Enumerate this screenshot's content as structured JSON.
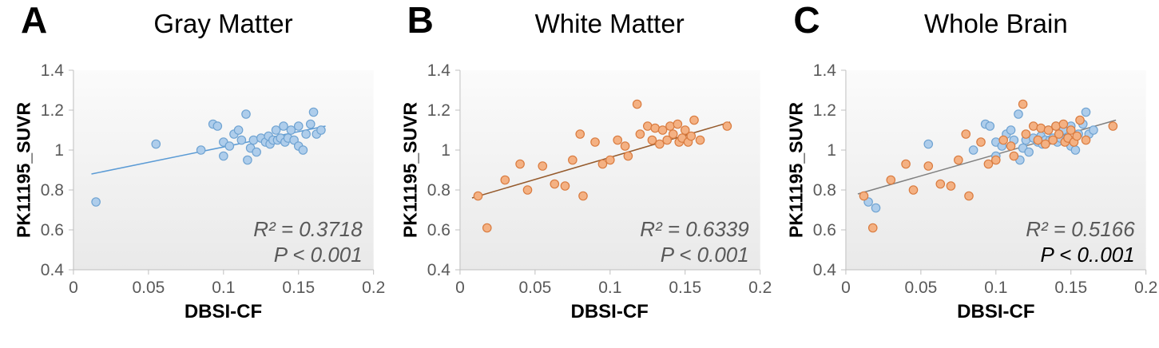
{
  "figure": {
    "background": "#FFFFFF"
  },
  "chart_data": [
    {
      "type": "scatter",
      "panel_label": "A",
      "title": "Gray Matter",
      "xlabel": "DBSI-CF",
      "ylabel": "PK11195_SUVR",
      "xlim": [
        0,
        0.2
      ],
      "ylim": [
        0.4,
        1.4
      ],
      "grid": false,
      "legend": "none",
      "xticks": {
        "values": [
          0,
          0.05,
          0.1,
          0.15,
          0.2
        ],
        "labels": [
          "0",
          "0.05",
          "0.1",
          "0.15",
          "0.2"
        ]
      },
      "yticks": {
        "values": [
          0.4,
          0.6,
          0.8,
          1,
          1.2,
          1.4
        ],
        "labels": [
          "0.4",
          "0.6",
          "0.8",
          "1",
          "1.2",
          "1.4"
        ]
      },
      "series": [
        {
          "name": "gray-matter",
          "fill": "#AECDEB",
          "stroke": "#6FA3D2",
          "points": [
            [
              0.015,
              0.74
            ],
            [
              0.055,
              1.03
            ],
            [
              0.085,
              1.0
            ],
            [
              0.093,
              1.13
            ],
            [
              0.096,
              1.12
            ],
            [
              0.1,
              1.04
            ],
            [
              0.1,
              0.97
            ],
            [
              0.104,
              1.02
            ],
            [
              0.107,
              1.08
            ],
            [
              0.11,
              1.1
            ],
            [
              0.112,
              1.05
            ],
            [
              0.115,
              1.18
            ],
            [
              0.116,
              0.95
            ],
            [
              0.118,
              1.01
            ],
            [
              0.12,
              1.05
            ],
            [
              0.122,
              0.99
            ],
            [
              0.125,
              1.06
            ],
            [
              0.128,
              1.04
            ],
            [
              0.13,
              1.07
            ],
            [
              0.131,
              1.03
            ],
            [
              0.133,
              1.05
            ],
            [
              0.135,
              1.1
            ],
            [
              0.136,
              1.05
            ],
            [
              0.138,
              1.06
            ],
            [
              0.14,
              1.12
            ],
            [
              0.141,
              1.04
            ],
            [
              0.143,
              1.06
            ],
            [
              0.145,
              1.1
            ],
            [
              0.147,
              1.05
            ],
            [
              0.15,
              1.12
            ],
            [
              0.15,
              1.02
            ],
            [
              0.153,
              1.0
            ],
            [
              0.155,
              1.08
            ],
            [
              0.158,
              1.13
            ],
            [
              0.16,
              1.19
            ],
            [
              0.162,
              1.08
            ],
            [
              0.165,
              1.1
            ]
          ]
        }
      ],
      "trendline": {
        "points": [
          [
            0.012,
            0.88
          ],
          [
            0.168,
            1.12
          ]
        ],
        "color": "#5B9BD5"
      },
      "annotations": [
        {
          "text": "R² = 0.3718",
          "color": "#595959",
          "italic": true
        },
        {
          "text": "P < 0.001",
          "color": "#595959",
          "italic": true
        }
      ]
    },
    {
      "type": "scatter",
      "panel_label": "B",
      "title": "White Matter",
      "xlabel": "DBSI-CF",
      "ylabel": "PK11195_SUVR",
      "xlim": [
        0,
        0.2
      ],
      "ylim": [
        0.4,
        1.4
      ],
      "grid": false,
      "legend": "none",
      "xticks": {
        "values": [
          0,
          0.05,
          0.1,
          0.15,
          0.2
        ],
        "labels": [
          "0",
          "0.05",
          "0.1",
          "0.15",
          "0.2"
        ]
      },
      "yticks": {
        "values": [
          0.4,
          0.6,
          0.8,
          1,
          1.2,
          1.4
        ],
        "labels": [
          "0.4",
          "0.6",
          "0.8",
          "1",
          "1.2",
          "1.4"
        ]
      },
      "series": [
        {
          "name": "white-matter",
          "fill": "#F4B183",
          "stroke": "#D97B3F",
          "points": [
            [
              0.012,
              0.77
            ],
            [
              0.018,
              0.61
            ],
            [
              0.03,
              0.85
            ],
            [
              0.04,
              0.93
            ],
            [
              0.045,
              0.8
            ],
            [
              0.055,
              0.92
            ],
            [
              0.063,
              0.83
            ],
            [
              0.07,
              0.82
            ],
            [
              0.075,
              0.95
            ],
            [
              0.08,
              1.08
            ],
            [
              0.082,
              0.77
            ],
            [
              0.09,
              1.04
            ],
            [
              0.095,
              0.93
            ],
            [
              0.1,
              0.95
            ],
            [
              0.105,
              1.05
            ],
            [
              0.11,
              1.02
            ],
            [
              0.112,
              0.97
            ],
            [
              0.118,
              1.23
            ],
            [
              0.12,
              1.08
            ],
            [
              0.125,
              1.12
            ],
            [
              0.128,
              1.05
            ],
            [
              0.13,
              1.11
            ],
            [
              0.133,
              1.03
            ],
            [
              0.135,
              1.1
            ],
            [
              0.138,
              1.05
            ],
            [
              0.14,
              1.12
            ],
            [
              0.142,
              1.08
            ],
            [
              0.145,
              1.13
            ],
            [
              0.146,
              1.04
            ],
            [
              0.148,
              1.06
            ],
            [
              0.15,
              1.1
            ],
            [
              0.152,
              1.04
            ],
            [
              0.154,
              1.07
            ],
            [
              0.156,
              1.15
            ],
            [
              0.16,
              1.05
            ],
            [
              0.178,
              1.12
            ]
          ]
        }
      ],
      "trendline": {
        "points": [
          [
            0.008,
            0.76
          ],
          [
            0.18,
            1.14
          ]
        ],
        "color": "#955A2C"
      },
      "annotations": [
        {
          "text": "R² = 0.6339",
          "color": "#595959",
          "italic": true
        },
        {
          "text": "P < 0.001",
          "color": "#595959",
          "italic": true
        }
      ]
    },
    {
      "type": "scatter",
      "panel_label": "C",
      "title": "Whole Brain",
      "xlabel": "DBSI-CF",
      "ylabel": "PK11195_SUVR",
      "xlim": [
        0,
        0.2
      ],
      "ylim": [
        0.4,
        1.4
      ],
      "grid": false,
      "legend": "none",
      "xticks": {
        "values": [
          0,
          0.05,
          0.1,
          0.15,
          0.2
        ],
        "labels": [
          "0",
          "0.05",
          "0.1",
          "0.15",
          "0.2"
        ]
      },
      "yticks": {
        "values": [
          0.4,
          0.6,
          0.8,
          1,
          1.2,
          1.4
        ],
        "labels": [
          "0.4",
          "0.6",
          "0.8",
          "1",
          "1.2",
          "1.4"
        ]
      },
      "series": [
        {
          "name": "gray-matter",
          "fill": "#AECDEB",
          "stroke": "#6FA3D2",
          "points": [
            [
              0.015,
              0.74
            ],
            [
              0.02,
              0.71
            ],
            [
              0.055,
              1.03
            ],
            [
              0.085,
              1.0
            ],
            [
              0.093,
              1.13
            ],
            [
              0.096,
              1.12
            ],
            [
              0.1,
              1.04
            ],
            [
              0.1,
              0.97
            ],
            [
              0.104,
              1.02
            ],
            [
              0.107,
              1.08
            ],
            [
              0.11,
              1.1
            ],
            [
              0.112,
              1.05
            ],
            [
              0.115,
              1.18
            ],
            [
              0.116,
              0.95
            ],
            [
              0.118,
              1.01
            ],
            [
              0.12,
              1.05
            ],
            [
              0.122,
              0.99
            ],
            [
              0.125,
              1.06
            ],
            [
              0.128,
              1.04
            ],
            [
              0.13,
              1.07
            ],
            [
              0.131,
              1.03
            ],
            [
              0.133,
              1.05
            ],
            [
              0.135,
              1.1
            ],
            [
              0.136,
              1.05
            ],
            [
              0.138,
              1.06
            ],
            [
              0.14,
              1.12
            ],
            [
              0.141,
              1.04
            ],
            [
              0.143,
              1.06
            ],
            [
              0.145,
              1.1
            ],
            [
              0.147,
              1.05
            ],
            [
              0.15,
              1.12
            ],
            [
              0.15,
              1.02
            ],
            [
              0.153,
              1.0
            ],
            [
              0.155,
              1.08
            ],
            [
              0.158,
              1.13
            ],
            [
              0.16,
              1.19
            ],
            [
              0.162,
              1.08
            ],
            [
              0.165,
              1.1
            ]
          ]
        },
        {
          "name": "white-matter",
          "fill": "#F4B183",
          "stroke": "#D97B3F",
          "points": [
            [
              0.012,
              0.77
            ],
            [
              0.018,
              0.61
            ],
            [
              0.03,
              0.85
            ],
            [
              0.04,
              0.93
            ],
            [
              0.045,
              0.8
            ],
            [
              0.055,
              0.92
            ],
            [
              0.063,
              0.83
            ],
            [
              0.07,
              0.82
            ],
            [
              0.075,
              0.95
            ],
            [
              0.08,
              1.08
            ],
            [
              0.082,
              0.77
            ],
            [
              0.09,
              1.04
            ],
            [
              0.095,
              0.93
            ],
            [
              0.1,
              0.95
            ],
            [
              0.105,
              1.05
            ],
            [
              0.11,
              1.02
            ],
            [
              0.112,
              0.97
            ],
            [
              0.118,
              1.23
            ],
            [
              0.12,
              1.08
            ],
            [
              0.125,
              1.12
            ],
            [
              0.128,
              1.05
            ],
            [
              0.13,
              1.11
            ],
            [
              0.133,
              1.03
            ],
            [
              0.135,
              1.1
            ],
            [
              0.138,
              1.05
            ],
            [
              0.14,
              1.12
            ],
            [
              0.142,
              1.08
            ],
            [
              0.145,
              1.13
            ],
            [
              0.146,
              1.04
            ],
            [
              0.148,
              1.06
            ],
            [
              0.15,
              1.1
            ],
            [
              0.152,
              1.04
            ],
            [
              0.154,
              1.07
            ],
            [
              0.156,
              1.15
            ],
            [
              0.16,
              1.05
            ],
            [
              0.178,
              1.12
            ]
          ]
        }
      ],
      "trendline": {
        "points": [
          [
            0.008,
            0.78
          ],
          [
            0.18,
            1.15
          ]
        ],
        "color": "#808080"
      },
      "annotations": [
        {
          "text": "R² = 0.5166",
          "color": "#595959",
          "italic": true
        },
        {
          "text": "P < 0..001",
          "color": "#000000",
          "italic": true
        }
      ]
    }
  ]
}
